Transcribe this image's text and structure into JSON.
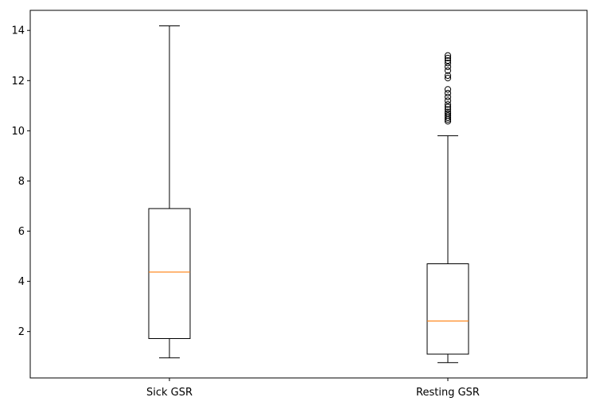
{
  "chart_data": {
    "type": "box",
    "title": "",
    "xlabel": "",
    "ylabel": "",
    "ylim": [
      0.15,
      14.8
    ],
    "yticks": [
      2,
      4,
      6,
      8,
      10,
      12,
      14
    ],
    "categories": [
      "Sick GSR",
      "Resting GSR"
    ],
    "grid": false,
    "colors": {
      "box": "#000000",
      "median": "#ff7f0e",
      "background": "#ffffff"
    },
    "boxes": [
      {
        "label": "Sick GSR",
        "whisker_low": 0.95,
        "q1": 1.72,
        "median": 4.37,
        "q3": 6.9,
        "whisker_high": 14.18,
        "outliers": []
      },
      {
        "label": "Resting GSR",
        "whisker_low": 0.76,
        "q1": 1.1,
        "median": 2.42,
        "q3": 4.7,
        "whisker_high": 9.8,
        "outliers": [
          10.38,
          10.45,
          10.52,
          10.6,
          10.68,
          10.75,
          10.85,
          10.95,
          11.05,
          11.2,
          11.35,
          11.5,
          11.65,
          12.1,
          12.2,
          12.4,
          12.55,
          12.7,
          12.8,
          12.9,
          13.0
        ]
      }
    ]
  }
}
